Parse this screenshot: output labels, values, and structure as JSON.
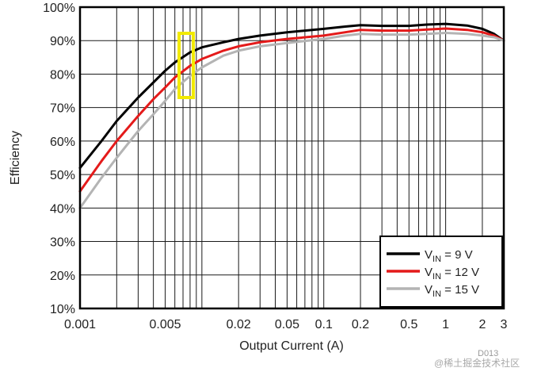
{
  "chart_data": {
    "type": "line",
    "xlabel": "Output Current (A)",
    "ylabel": "Efficiency",
    "x_scale": "log",
    "xlim": [
      0.001,
      3
    ],
    "ylim": [
      10,
      100
    ],
    "grid": true,
    "x_ticks": [
      {
        "value": 0.001,
        "label": "0.001"
      },
      {
        "value": 0.005,
        "label": "0.005"
      },
      {
        "value": 0.02,
        "label": "0.02"
      },
      {
        "value": 0.05,
        "label": "0.05"
      },
      {
        "value": 0.1,
        "label": "0.1"
      },
      {
        "value": 0.2,
        "label": "0.2"
      },
      {
        "value": 0.5,
        "label": "0.5"
      },
      {
        "value": 1,
        "label": "1"
      },
      {
        "value": 2,
        "label": "2"
      },
      {
        "value": 3,
        "label": "3"
      }
    ],
    "y_ticks": [
      {
        "value": 10,
        "label": "10%"
      },
      {
        "value": 20,
        "label": "20%"
      },
      {
        "value": 30,
        "label": "30%"
      },
      {
        "value": 40,
        "label": "40%"
      },
      {
        "value": 50,
        "label": "50%"
      },
      {
        "value": 60,
        "label": "60%"
      },
      {
        "value": 70,
        "label": "70%"
      },
      {
        "value": 80,
        "label": "80%"
      },
      {
        "value": 90,
        "label": "90%"
      },
      {
        "value": 100,
        "label": "100%"
      }
    ],
    "legend_position": "bottom-right",
    "series": [
      {
        "name": "VIN = 9 V",
        "legend_main": "V",
        "legend_sub": "IN",
        "legend_rest": " = 9 V",
        "color": "#000000",
        "x": [
          0.001,
          0.0015,
          0.002,
          0.003,
          0.004,
          0.005,
          0.006,
          0.008,
          0.01,
          0.015,
          0.02,
          0.03,
          0.05,
          0.1,
          0.15,
          0.2,
          0.3,
          0.5,
          0.7,
          1,
          1.5,
          2,
          2.5,
          3
        ],
        "y": [
          52,
          60,
          66,
          73,
          77.5,
          81,
          83.5,
          86.5,
          88,
          89.5,
          90.5,
          91.5,
          92.5,
          93.5,
          94.2,
          94.6,
          94.4,
          94.4,
          94.8,
          95,
          94.5,
          93.5,
          92,
          90
        ]
      },
      {
        "name": "VIN = 12 V",
        "legend_main": "V",
        "legend_sub": "IN",
        "legend_rest": " = 12 V",
        "color": "#e41a1a",
        "x": [
          0.001,
          0.0015,
          0.002,
          0.003,
          0.004,
          0.005,
          0.006,
          0.008,
          0.01,
          0.015,
          0.02,
          0.03,
          0.05,
          0.1,
          0.15,
          0.2,
          0.3,
          0.5,
          0.7,
          1,
          1.5,
          2,
          2.5,
          3
        ],
        "y": [
          45,
          54,
          60,
          67.5,
          72.5,
          76,
          79,
          82.5,
          84.5,
          87,
          88.3,
          89.5,
          90.5,
          91.5,
          92.5,
          93.2,
          93,
          93,
          93.3,
          93.6,
          93.2,
          92.5,
          91.5,
          90
        ]
      },
      {
        "name": "VIN = 15 V",
        "legend_main": "V",
        "legend_sub": "IN",
        "legend_rest": " = 15 V",
        "color": "#b4b4b4",
        "x": [
          0.001,
          0.0015,
          0.002,
          0.003,
          0.004,
          0.005,
          0.006,
          0.008,
          0.01,
          0.015,
          0.02,
          0.03,
          0.05,
          0.1,
          0.15,
          0.2,
          0.3,
          0.5,
          0.7,
          1,
          1.5,
          2,
          2.5,
          3
        ],
        "y": [
          40,
          49,
          55,
          63,
          68,
          72,
          75.5,
          79.5,
          82,
          85.5,
          87,
          88.3,
          89.3,
          90.5,
          91.5,
          92,
          91.8,
          91.8,
          92,
          92.3,
          92,
          91.5,
          91,
          90
        ]
      }
    ],
    "annotation": {
      "type": "highlight-box",
      "color": "#f2ea00",
      "x_range": [
        0.0065,
        0.0085
      ],
      "y_range": [
        73,
        100
      ]
    },
    "figure_id": "D013"
  },
  "watermark": "@稀土掘金技术社区"
}
